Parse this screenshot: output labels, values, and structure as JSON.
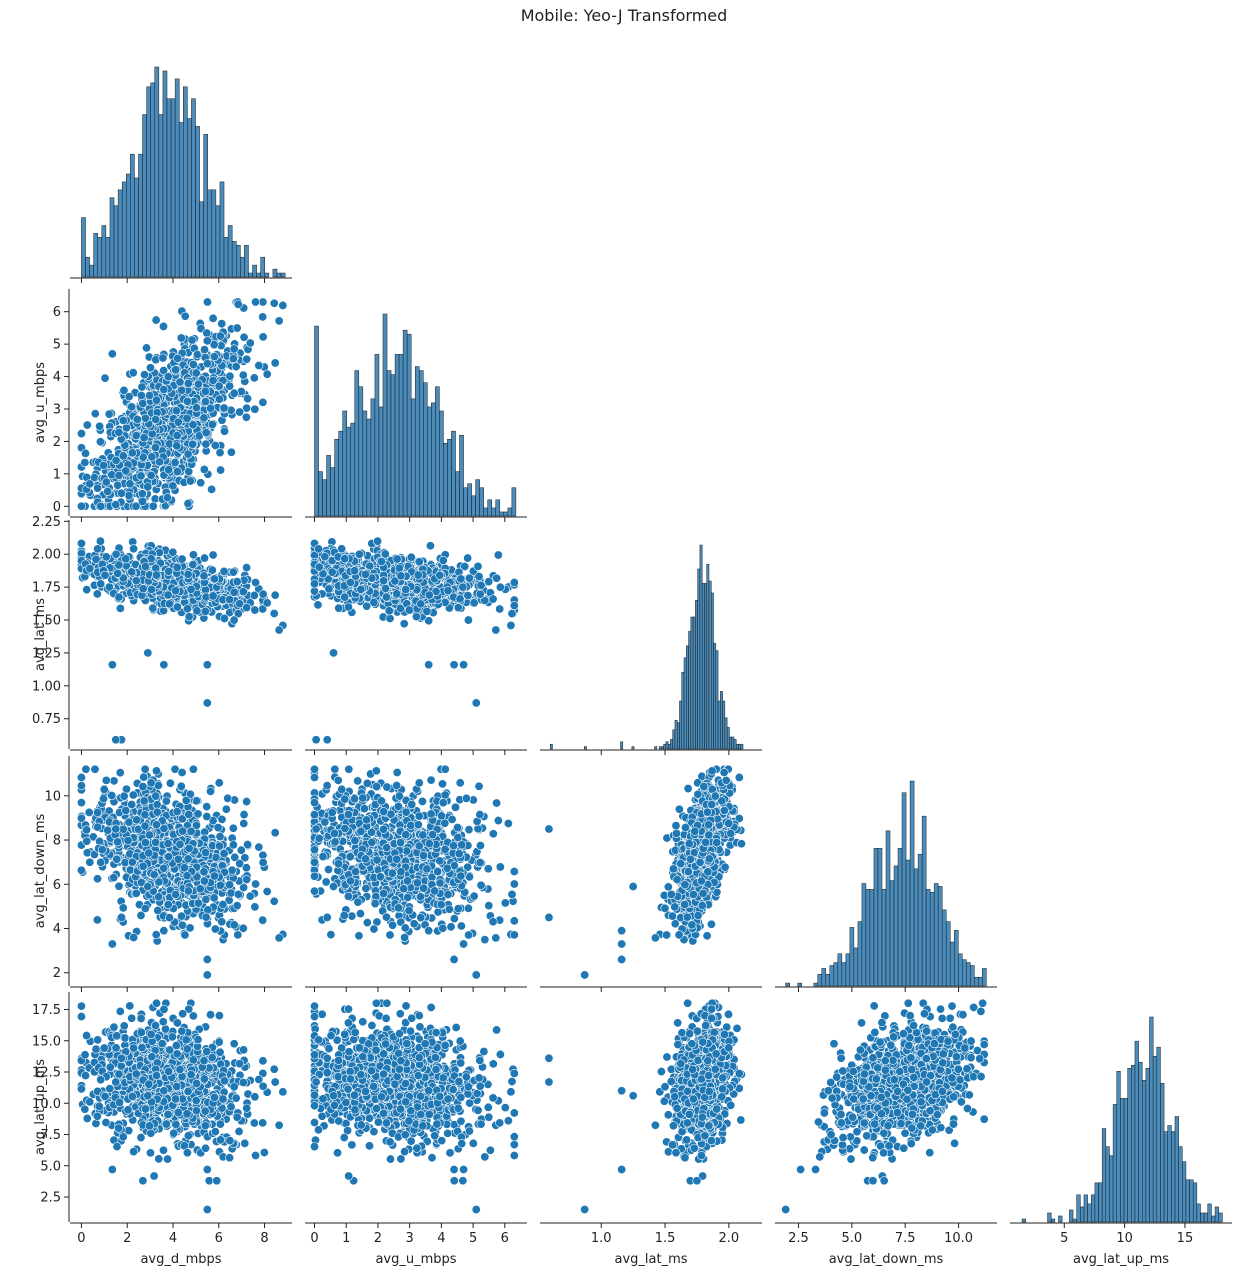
{
  "title": "Mobile: Yeo-J Transformed",
  "colors": {
    "points": "#1f77b4",
    "point_edge": "#ffffff",
    "bars": "#4a8dbd",
    "bar_edge": "#1a1a1a",
    "axis": "#222222"
  },
  "chart_data": {
    "type": "scatter",
    "kind": "pairplot (lower triangle, histograms on diagonal)",
    "title": "Mobile: Yeo-J Transformed",
    "variables": [
      {
        "name": "avg_d_mbps",
        "label": "avg_d_mbps",
        "range": [
          -0.5,
          9.2
        ],
        "ticks": [
          0,
          2,
          4,
          6,
          8
        ],
        "tick_labels": [
          "0",
          "2",
          "4",
          "6",
          "8"
        ],
        "mean": 3.8,
        "sd": 1.6,
        "min": 0,
        "max": 8.9
      },
      {
        "name": "avg_u_mbps",
        "label": "avg_u_mbps",
        "range": [
          -0.3,
          6.7
        ],
        "ticks": [
          0,
          1,
          2,
          3,
          4,
          5,
          6
        ],
        "tick_labels": [
          "0",
          "1",
          "2",
          "3",
          "4",
          "5",
          "6"
        ],
        "mean": 2.6,
        "sd": 1.3,
        "min": 0,
        "max": 6.35
      },
      {
        "name": "avg_lat_ms",
        "label": "avg_lat_ms",
        "range": [
          0.52,
          2.26
        ],
        "ticks": [
          0.75,
          1.0,
          1.25,
          1.5,
          1.75,
          2.0,
          2.25
        ],
        "tick_labels": [
          "0.75",
          "1.00",
          "1.25",
          "1.50",
          "1.75",
          "2.00",
          "2.25"
        ],
        "x_ticks": [
          1.0,
          1.5,
          2.0
        ],
        "x_tick_labels": [
          "1.0",
          "1.5",
          "2.0"
        ],
        "mean": 1.78,
        "sd": 0.1,
        "min": 0.6,
        "max": 2.2
      },
      {
        "name": "avg_lat_down_ms",
        "label": "avg_lat_down_ms",
        "range": [
          1.4,
          11.8
        ],
        "ticks": [
          2,
          4,
          6,
          8,
          10
        ],
        "tick_labels": [
          "2",
          "4",
          "6",
          "8",
          "10"
        ],
        "x_ticks": [
          2.5,
          5.0,
          7.5,
          10.0
        ],
        "x_tick_labels": [
          "2.5",
          "5.0",
          "7.5",
          "10.0"
        ],
        "mean": 7.5,
        "sd": 1.2,
        "min": 1.9,
        "max": 11.3
      },
      {
        "name": "avg_lat_up_ms",
        "label": "avg_lat_up_ms",
        "range": [
          0.5,
          18.9
        ],
        "ticks": [
          2.5,
          5.0,
          7.5,
          10.0,
          12.5,
          15.0,
          17.5
        ],
        "tick_labels": [
          "2.5",
          "5.0",
          "7.5",
          "10.0",
          "12.5",
          "15.0",
          "17.5"
        ],
        "x_ticks": [
          5,
          10,
          15
        ],
        "x_tick_labels": [
          "5",
          "10",
          "15"
        ],
        "mean": 11.5,
        "sd": 2.1,
        "min": 1.5,
        "max": 18.1
      }
    ],
    "outliers": [
      {
        "avg_d_mbps": 1.35,
        "avg_u_mbps": 4.7,
        "avg_lat_ms": 1.16,
        "avg_lat_down_ms": 3.3,
        "avg_lat_up_ms": 4.7
      },
      {
        "avg_d_mbps": 1.75,
        "avg_u_mbps": 0.4,
        "avg_lat_ms": 0.59,
        "avg_lat_down_ms": 4.5,
        "avg_lat_up_ms": 13.6
      },
      {
        "avg_d_mbps": 2.9,
        "avg_u_mbps": 0.6,
        "avg_lat_ms": 1.25,
        "avg_lat_down_ms": 5.9,
        "avg_lat_up_ms": 10.6
      },
      {
        "avg_d_mbps": 3.6,
        "avg_u_mbps": 3.6,
        "avg_lat_ms": 1.16,
        "avg_lat_down_ms": 3.9,
        "avg_lat_up_ms": 11.0
      },
      {
        "avg_d_mbps": 5.5,
        "avg_u_mbps": 4.4,
        "avg_lat_ms": 1.16,
        "avg_lat_down_ms": 2.6,
        "avg_lat_up_ms": 4.7
      },
      {
        "avg_d_mbps": 5.5,
        "avg_u_mbps": 5.1,
        "avg_lat_ms": 0.87,
        "avg_lat_down_ms": 1.9,
        "avg_lat_up_ms": 1.5
      },
      {
        "avg_d_mbps": 1.5,
        "avg_u_mbps": 0.05,
        "avg_lat_ms": 0.59,
        "avg_lat_down_ms": 8.5,
        "avg_lat_up_ms": 11.7
      }
    ],
    "grid": false,
    "legend": "none"
  }
}
